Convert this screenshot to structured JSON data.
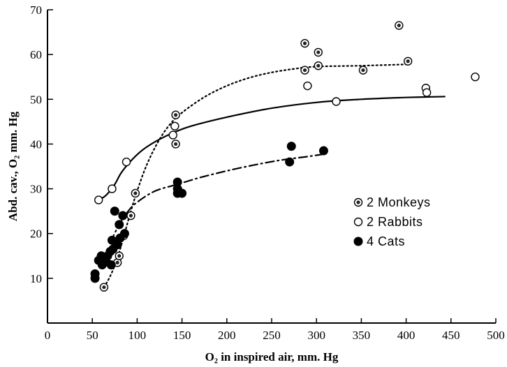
{
  "chart_data": {
    "type": "scatter",
    "xlabel": "O₂ in inspired air, mm. Hg",
    "ylabel": "Abd. cav., O₂ mm. Hg",
    "xlim": [
      0,
      500
    ],
    "ylim": [
      0,
      70
    ],
    "x_ticks": [
      0,
      50,
      100,
      150,
      200,
      250,
      300,
      350,
      400,
      450,
      500
    ],
    "y_ticks": [
      10,
      20,
      30,
      40,
      50,
      60,
      70
    ],
    "grid": false,
    "legend_position": "right",
    "series": [
      {
        "name": "2 Monkeys",
        "marker": "dotted-circle",
        "curve_style": "dotted",
        "points": [
          [
            63,
            8
          ],
          [
            78,
            13.5
          ],
          [
            80,
            15
          ],
          [
            85,
            19.5
          ],
          [
            93,
            24
          ],
          [
            98,
            29
          ],
          [
            143,
            46.5
          ],
          [
            143,
            40
          ],
          [
            287,
            62.5
          ],
          [
            287,
            56.5
          ],
          [
            302,
            60.5
          ],
          [
            302,
            57.5
          ],
          [
            352,
            56.5
          ],
          [
            392,
            66.5
          ],
          [
            402,
            58.5
          ]
        ],
        "curve": [
          [
            63,
            8
          ],
          [
            70,
            10.5
          ],
          [
            78,
            14.5
          ],
          [
            86,
            20
          ],
          [
            93,
            25
          ],
          [
            100,
            29.5
          ],
          [
            110,
            35
          ],
          [
            122,
            40
          ],
          [
            135,
            44
          ],
          [
            150,
            47
          ],
          [
            175,
            50.5
          ],
          [
            200,
            53
          ],
          [
            225,
            54.8
          ],
          [
            250,
            56
          ],
          [
            275,
            56.8
          ],
          [
            300,
            57.3
          ],
          [
            350,
            57.5
          ],
          [
            400,
            57.8
          ]
        ]
      },
      {
        "name": "2 Rabbits",
        "marker": "open-circle",
        "curve_style": "solid",
        "points": [
          [
            57,
            27.5
          ],
          [
            72,
            30
          ],
          [
            88,
            36
          ],
          [
            140,
            42
          ],
          [
            142,
            44
          ],
          [
            290,
            53
          ],
          [
            322,
            49.5
          ],
          [
            422,
            52.5
          ],
          [
            423,
            51.5
          ],
          [
            477,
            55
          ]
        ],
        "curve": [
          [
            57,
            27.5
          ],
          [
            65,
            28.5
          ],
          [
            75,
            31
          ],
          [
            82,
            33.5
          ],
          [
            92,
            36
          ],
          [
            105,
            38.5
          ],
          [
            120,
            40.5
          ],
          [
            140,
            42.5
          ],
          [
            160,
            44
          ],
          [
            200,
            46
          ],
          [
            250,
            48
          ],
          [
            300,
            49.3
          ],
          [
            350,
            50
          ],
          [
            400,
            50.4
          ],
          [
            443,
            50.6
          ]
        ]
      },
      {
        "name": "4 Cats",
        "marker": "filled-circle",
        "curve_style": "dash-dot",
        "points": [
          [
            53,
            11
          ],
          [
            53,
            10
          ],
          [
            57,
            14
          ],
          [
            60,
            15
          ],
          [
            61,
            13
          ],
          [
            63,
            13.5
          ],
          [
            65,
            14
          ],
          [
            67,
            15
          ],
          [
            70,
            16
          ],
          [
            71,
            13
          ],
          [
            72,
            18.5
          ],
          [
            73,
            16.5
          ],
          [
            75,
            25
          ],
          [
            78,
            17.5
          ],
          [
            80,
            22
          ],
          [
            81,
            19
          ],
          [
            84,
            24
          ],
          [
            86,
            20
          ],
          [
            145,
            29
          ],
          [
            145,
            30
          ],
          [
            145,
            31.5
          ],
          [
            150,
            29
          ],
          [
            270,
            36
          ],
          [
            272,
            39.5
          ],
          [
            308,
            38.5
          ]
        ],
        "curve": [
          [
            70,
            18
          ],
          [
            80,
            22
          ],
          [
            90,
            25
          ],
          [
            100,
            27
          ],
          [
            120,
            29.5
          ],
          [
            145,
            31
          ],
          [
            170,
            32.5
          ],
          [
            200,
            34
          ],
          [
            230,
            35.3
          ],
          [
            260,
            36.4
          ],
          [
            290,
            37.2
          ],
          [
            310,
            37.8
          ]
        ]
      }
    ],
    "legend": {
      "items": [
        {
          "label": "2 Monkeys",
          "marker": "dotted-circle"
        },
        {
          "label": "2 Rabbits",
          "marker": "open-circle"
        },
        {
          "label": "4 Cats",
          "marker": "filled-circle"
        }
      ]
    }
  }
}
